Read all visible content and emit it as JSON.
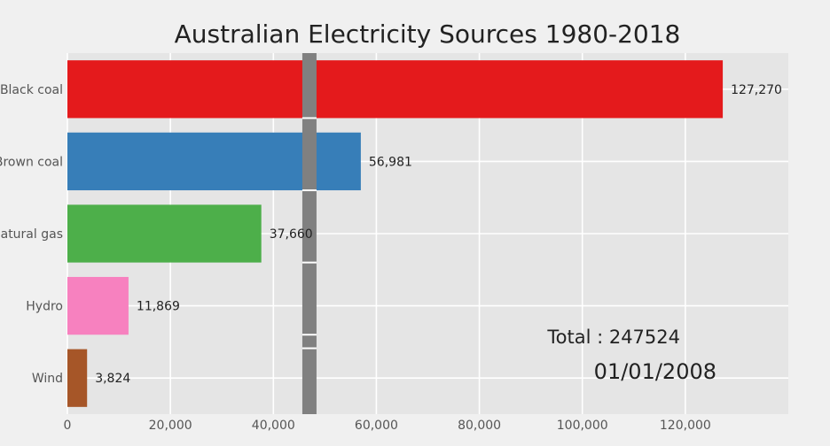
{
  "chart_data": {
    "type": "bar",
    "orientation": "horizontal",
    "title": "Australian Electricity Sources 1980-2018",
    "xlabel": "",
    "ylabel": "",
    "xlim": [
      0,
      140000
    ],
    "x_ticks": [
      0,
      20000,
      40000,
      60000,
      80000,
      100000,
      120000
    ],
    "x_tick_labels": [
      "0",
      "20,000",
      "40,000",
      "60,000",
      "80,000",
      "100,000",
      "120,000"
    ],
    "categories": [
      "Black coal",
      "Brown coal",
      "Natural gas",
      "Hydro",
      "Wind"
    ],
    "values": [
      127270,
      56981,
      37660,
      11869,
      3824
    ],
    "value_labels": [
      "127,270",
      "56,981",
      "37,660",
      "11,869",
      "3,824"
    ],
    "colors": [
      "#e41a1c",
      "#377eb8",
      "#4daf4a",
      "#f781bf",
      "#a65628"
    ],
    "grid": true,
    "marker_line_value": 47000,
    "marker_line_color": "#808080",
    "annotations": {
      "total": "Total : 247524",
      "date": "01/01/2008"
    },
    "style": {
      "background": "#f0f0f0",
      "plot_background": "#e5e5e5",
      "grid_color": "#ffffff",
      "text_color": "#222222",
      "tick_color": "#555555"
    }
  }
}
